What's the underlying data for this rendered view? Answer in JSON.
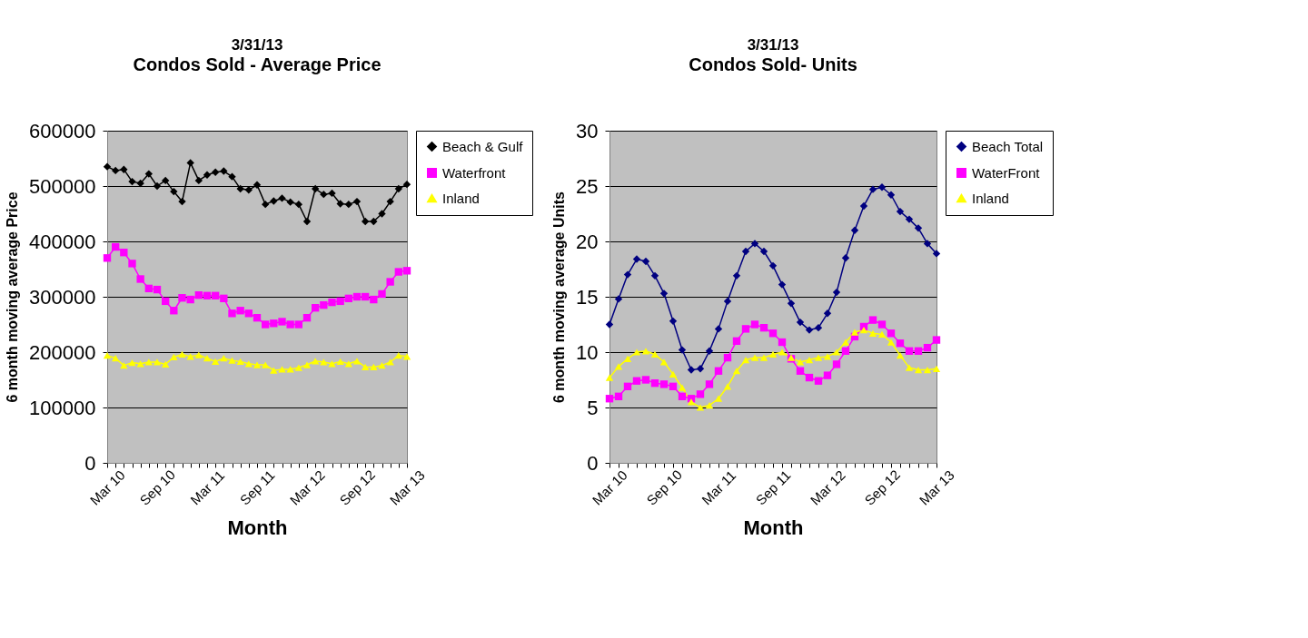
{
  "chart_data": [
    {
      "type": "line",
      "title": "3/31/13",
      "subtitle": "Condos Sold - Average Price",
      "xlabel": "Month",
      "ylabel": "6 month moving average Price",
      "categories": [
        "Mar 10",
        null,
        null,
        null,
        null,
        null,
        "Sep 10",
        null,
        null,
        null,
        null,
        null,
        "Mar 11",
        null,
        null,
        null,
        null,
        null,
        "Sep 11",
        null,
        null,
        null,
        null,
        null,
        "Mar 12",
        null,
        null,
        null,
        null,
        null,
        "Sep 12",
        null,
        null,
        null,
        null,
        null,
        "Mar 13"
      ],
      "series": [
        {
          "name": "Beach & Gulf",
          "color": "#000000",
          "marker": "diamond",
          "values": [
            535000,
            528000,
            530000,
            508000,
            505000,
            522000,
            500000,
            510000,
            490000,
            472000,
            542000,
            510000,
            520000,
            525000,
            527000,
            517000,
            495000,
            493000,
            502000,
            467000,
            473000,
            478000,
            471000,
            467000,
            436000,
            495000,
            485000,
            487000,
            468000,
            467000,
            472000,
            436000,
            436000,
            450000,
            472000,
            495000,
            503000
          ]
        },
        {
          "name": "Waterfront",
          "color": "#ff00ff",
          "marker": "square",
          "values": [
            370000,
            390000,
            380000,
            360000,
            332000,
            315000,
            313000,
            292000,
            275000,
            298000,
            295000,
            303000,
            302000,
            302000,
            297000,
            270000,
            275000,
            270000,
            262000,
            250000,
            252000,
            255000,
            250000,
            250000,
            262000,
            280000,
            285000,
            290000,
            292000,
            297000,
            300000,
            300000,
            295000,
            305000,
            327000,
            345000,
            347000
          ]
        },
        {
          "name": "Inland",
          "color": "#ffff00",
          "marker": "triangle",
          "values": [
            194000,
            189000,
            176000,
            181000,
            179000,
            182000,
            182000,
            178000,
            191000,
            196000,
            192000,
            195000,
            189000,
            183000,
            189000,
            185000,
            183000,
            179000,
            177000,
            177000,
            167000,
            169000,
            169000,
            172000,
            177000,
            184000,
            182000,
            179000,
            183000,
            179000,
            184000,
            173000,
            173000,
            176000,
            182000,
            194000,
            192000
          ]
        }
      ],
      "ylim": [
        0,
        600000
      ],
      "yticks": [
        0,
        100000,
        200000,
        300000,
        400000,
        500000,
        600000
      ],
      "grid": "y",
      "legend": "top right"
    },
    {
      "type": "line",
      "title": "3/31/13",
      "subtitle": "Condos Sold- Units",
      "xlabel": "Month",
      "ylabel": "6 month moving average Units",
      "categories": [
        "Mar 10",
        null,
        null,
        null,
        null,
        null,
        "Sep 10",
        null,
        null,
        null,
        null,
        null,
        "Mar 11",
        null,
        null,
        null,
        null,
        null,
        "Sep 11",
        null,
        null,
        null,
        null,
        null,
        "Mar 12",
        null,
        null,
        null,
        null,
        null,
        "Sep 12",
        null,
        null,
        null,
        null,
        null,
        "Mar 13"
      ],
      "series": [
        {
          "name": "Beach Total",
          "color": "#000080",
          "marker": "diamond",
          "values": [
            12.5,
            14.8,
            17,
            18.4,
            18.2,
            16.9,
            15.3,
            12.8,
            10.2,
            8.4,
            8.5,
            10.1,
            12.1,
            14.6,
            16.9,
            19.1,
            19.8,
            19.1,
            17.8,
            16.1,
            14.4,
            12.7,
            12,
            12.2,
            13.5,
            15.4,
            18.5,
            21,
            23.2,
            24.7,
            24.9,
            24.2,
            22.7,
            22,
            21.2,
            19.8,
            18.9
          ]
        },
        {
          "name": "WaterFront",
          "color": "#ff00ff",
          "marker": "square",
          "values": [
            5.8,
            6,
            6.9,
            7.4,
            7.5,
            7.2,
            7.1,
            6.9,
            6,
            5.8,
            6.2,
            7.1,
            8.3,
            9.5,
            11,
            12.1,
            12.5,
            12.2,
            11.7,
            10.9,
            9.4,
            8.3,
            7.7,
            7.4,
            7.9,
            8.9,
            10.1,
            11.4,
            12.3,
            12.9,
            12.5,
            11.7,
            10.8,
            10.1,
            10.1,
            10.4,
            11.1
          ]
        },
        {
          "name": "Inland",
          "color": "#ffff00",
          "marker": "triangle",
          "values": [
            7.7,
            8.7,
            9.4,
            10,
            10.1,
            9.8,
            9.1,
            8,
            6.8,
            5.5,
            5,
            5.2,
            5.8,
            6.9,
            8.3,
            9.3,
            9.5,
            9.5,
            9.8,
            10,
            9.5,
            9.1,
            9.3,
            9.5,
            9.6,
            10,
            10.9,
            11.8,
            12,
            11.7,
            11.6,
            10.9,
            9.7,
            8.6,
            8.4,
            8.4,
            8.5
          ]
        }
      ],
      "ylim": [
        0,
        30
      ],
      "yticks": [
        0,
        5,
        10,
        15,
        20,
        25,
        30
      ],
      "grid": "y",
      "legend": "top right"
    }
  ]
}
